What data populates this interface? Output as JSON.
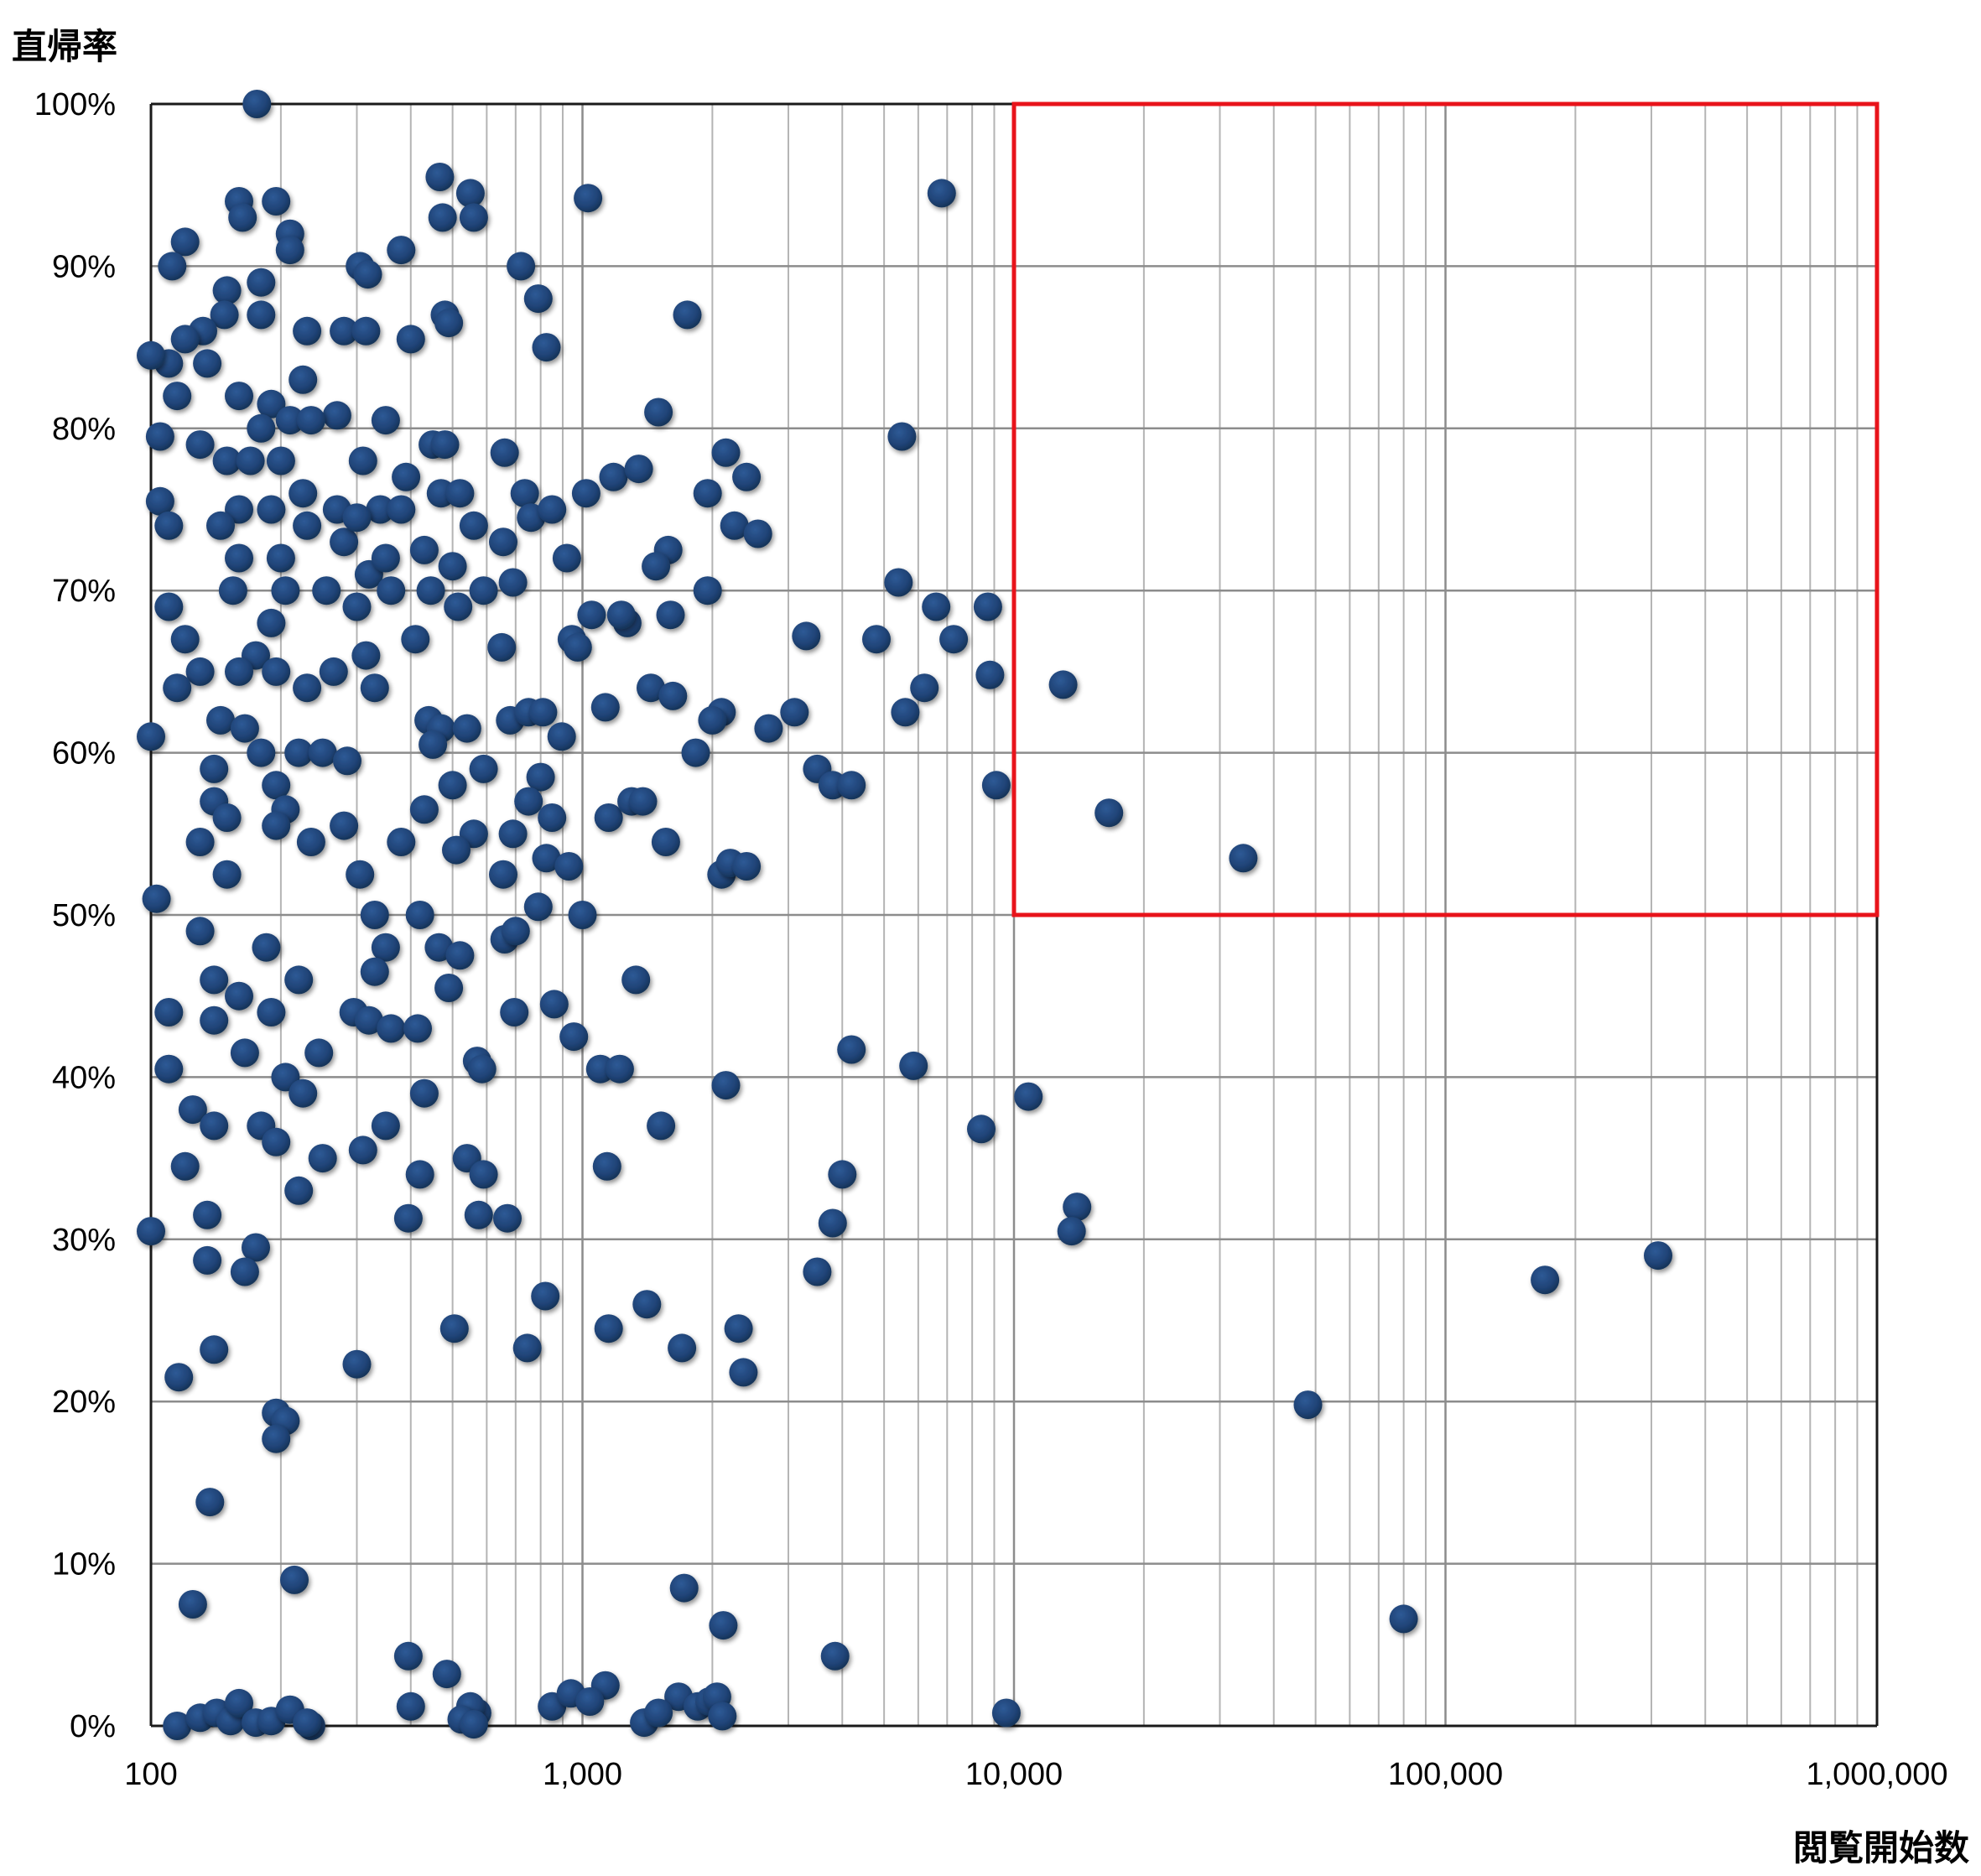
{
  "chart_data": {
    "type": "scatter",
    "title": "",
    "ylabel": "直帰率",
    "xlabel": "閲覧開始数",
    "xscale": "log",
    "xlim": [
      100,
      1000000
    ],
    "ylim": [
      0,
      100
    ],
    "grid": true,
    "legend": "none",
    "xticks": [
      100,
      1000,
      10000,
      100000,
      1000000
    ],
    "xtick_labels": [
      "100",
      "1,000",
      "10,000",
      "100,000",
      "1,000,000"
    ],
    "yticks": [
      0,
      10,
      20,
      30,
      40,
      50,
      60,
      70,
      80,
      90,
      100
    ],
    "ytick_labels": [
      "0%",
      "10%",
      "20%",
      "30%",
      "40%",
      "50%",
      "60%",
      "70%",
      "80%",
      "90%",
      "100%"
    ],
    "highlight_region": {
      "x": [
        10000,
        1000000
      ],
      "y": [
        50,
        100
      ],
      "color": "#e8141b"
    },
    "marker_color": "#1f4275",
    "series": [
      {
        "points": [
          [
            176,
            100
          ],
          [
            467,
            95.5
          ],
          [
            550,
            94.5
          ],
          [
            160,
            94
          ],
          [
            195,
            94
          ],
          [
            1030,
            94.2
          ],
          [
            6800,
            94.5
          ],
          [
            163,
            93
          ],
          [
            474,
            93
          ],
          [
            560,
            93
          ],
          [
            210,
            92
          ],
          [
            120,
            91.5
          ],
          [
            380,
            91
          ],
          [
            210,
            91
          ],
          [
            305,
            90
          ],
          [
            112,
            90
          ],
          [
            720,
            90
          ],
          [
            180,
            89
          ],
          [
            150,
            88.5
          ],
          [
            318,
            89.5
          ],
          [
            790,
            88
          ],
          [
            180,
            87
          ],
          [
            148,
            87
          ],
          [
            480,
            87
          ],
          [
            490,
            86.5
          ],
          [
            1750,
            87
          ],
          [
            132,
            86
          ],
          [
            230,
            86
          ],
          [
            280,
            86
          ],
          [
            315,
            86
          ],
          [
            120,
            85.5
          ],
          [
            400,
            85.5
          ],
          [
            825,
            85
          ],
          [
            110,
            84
          ],
          [
            135,
            84
          ],
          [
            100,
            84.5
          ],
          [
            225,
            83
          ],
          [
            115,
            82
          ],
          [
            160,
            82
          ],
          [
            190,
            81.5
          ],
          [
            1500,
            81
          ],
          [
            210,
            80.5
          ],
          [
            270,
            80.8
          ],
          [
            235,
            80.5
          ],
          [
            350,
            80.5
          ],
          [
            105,
            79.5
          ],
          [
            130,
            79
          ],
          [
            180,
            80
          ],
          [
            5500,
            79.5
          ],
          [
            450,
            79
          ],
          [
            480,
            79
          ],
          [
            150,
            78
          ],
          [
            170,
            78
          ],
          [
            200,
            78
          ],
          [
            310,
            78
          ],
          [
            660,
            78.5
          ],
          [
            2150,
            78.5
          ],
          [
            390,
            77
          ],
          [
            1180,
            77
          ],
          [
            1350,
            77.5
          ],
          [
            2400,
            77
          ],
          [
            735,
            76
          ],
          [
            1020,
            76
          ],
          [
            1950,
            76
          ],
          [
            225,
            76
          ],
          [
            105,
            75.5
          ],
          [
            160,
            75
          ],
          [
            190,
            75
          ],
          [
            270,
            75
          ],
          [
            340,
            75
          ],
          [
            380,
            75
          ],
          [
            470,
            76
          ],
          [
            520,
            76
          ],
          [
            760,
            74.5
          ],
          [
            850,
            75
          ],
          [
            2250,
            74
          ],
          [
            2550,
            73.5
          ],
          [
            110,
            74
          ],
          [
            145,
            74
          ],
          [
            230,
            74
          ],
          [
            280,
            73
          ],
          [
            300,
            74.5
          ],
          [
            560,
            74
          ],
          [
            655,
            73
          ],
          [
            1580,
            72.5
          ],
          [
            500,
            71.5
          ],
          [
            160,
            72
          ],
          [
            200,
            72
          ],
          [
            320,
            71
          ],
          [
            350,
            72
          ],
          [
            430,
            72.5
          ],
          [
            920,
            72
          ],
          [
            1480,
            71.5
          ],
          [
            5400,
            70.5
          ],
          [
            155,
            70
          ],
          [
            205,
            70
          ],
          [
            255,
            70
          ],
          [
            360,
            70
          ],
          [
            445,
            70
          ],
          [
            590,
            70
          ],
          [
            690,
            70.5
          ],
          [
            1950,
            70
          ],
          [
            110,
            69
          ],
          [
            300,
            69
          ],
          [
            515,
            69
          ],
          [
            1050,
            68.5
          ],
          [
            1270,
            68
          ],
          [
            1230,
            68.5
          ],
          [
            1600,
            68.5
          ],
          [
            6600,
            69
          ],
          [
            8700,
            69
          ],
          [
            120,
            67
          ],
          [
            190,
            68
          ],
          [
            945,
            67
          ],
          [
            3300,
            67.2
          ],
          [
            4800,
            67
          ],
          [
            7250,
            67
          ],
          [
            175,
            66
          ],
          [
            315,
            66
          ],
          [
            410,
            67
          ],
          [
            650,
            66.5
          ],
          [
            975,
            66.5
          ],
          [
            130,
            65
          ],
          [
            160,
            65
          ],
          [
            195,
            65
          ],
          [
            265,
            65
          ],
          [
            8800,
            64.8
          ],
          [
            115,
            64
          ],
          [
            230,
            64
          ],
          [
            330,
            64
          ],
          [
            6200,
            64
          ],
          [
            13000,
            64.2
          ],
          [
            1440,
            64
          ],
          [
            1620,
            63.5
          ],
          [
            680,
            62
          ],
          [
            750,
            62.5
          ],
          [
            810,
            62.5
          ],
          [
            440,
            62
          ],
          [
            470,
            61.5
          ],
          [
            145,
            62
          ],
          [
            165,
            61.5
          ],
          [
            1130,
            62.8
          ],
          [
            2100,
            62.5
          ],
          [
            2000,
            62
          ],
          [
            3100,
            62.5
          ],
          [
            2700,
            61.5
          ],
          [
            5600,
            62.5
          ],
          [
            540,
            61.5
          ],
          [
            895,
            61
          ],
          [
            100,
            61
          ],
          [
            450,
            60.5
          ],
          [
            180,
            60
          ],
          [
            220,
            60
          ],
          [
            250,
            60
          ],
          [
            1830,
            60
          ],
          [
            285,
            59.5
          ],
          [
            140,
            59
          ],
          [
            590,
            59
          ],
          [
            3500,
            59
          ],
          [
            195,
            58
          ],
          [
            500,
            58
          ],
          [
            800,
            58.5
          ],
          [
            3800,
            58
          ],
          [
            4200,
            58
          ],
          [
            9100,
            58
          ],
          [
            140,
            57
          ],
          [
            205,
            56.5
          ],
          [
            430,
            56.5
          ],
          [
            750,
            57
          ],
          [
            1150,
            56
          ],
          [
            1300,
            57
          ],
          [
            1380,
            57
          ],
          [
            16600,
            56.3
          ],
          [
            150,
            56
          ],
          [
            195,
            55.5
          ],
          [
            280,
            55.5
          ],
          [
            560,
            55
          ],
          [
            690,
            55
          ],
          [
            850,
            56
          ],
          [
            1560,
            54.5
          ],
          [
            130,
            54.5
          ],
          [
            235,
            54.5
          ],
          [
            380,
            54.5
          ],
          [
            510,
            54
          ],
          [
            655,
            52.5
          ],
          [
            825,
            53.5
          ],
          [
            930,
            53
          ],
          [
            2100,
            52.5
          ],
          [
            2200,
            53.2
          ],
          [
            2400,
            53
          ],
          [
            34000,
            53.5
          ],
          [
            150,
            52.5
          ],
          [
            305,
            52.5
          ],
          [
            790,
            50.5
          ],
          [
            103,
            51
          ],
          [
            1000,
            50
          ],
          [
            330,
            50
          ],
          [
            420,
            50
          ],
          [
            465,
            48
          ],
          [
            520,
            47.5
          ],
          [
            660,
            48.5
          ],
          [
            700,
            49
          ],
          [
            130,
            49
          ],
          [
            185,
            48
          ],
          [
            350,
            48
          ],
          [
            140,
            46
          ],
          [
            220,
            46
          ],
          [
            330,
            46.5
          ],
          [
            490,
            45.5
          ],
          [
            1330,
            46
          ],
          [
            160,
            45
          ],
          [
            110,
            44
          ],
          [
            190,
            44
          ],
          [
            295,
            44
          ],
          [
            320,
            43.5
          ],
          [
            360,
            43
          ],
          [
            695,
            44
          ],
          [
            860,
            44.5
          ],
          [
            140,
            43.5
          ],
          [
            415,
            43
          ],
          [
            955,
            42.5
          ],
          [
            165,
            41.5
          ],
          [
            245,
            41.5
          ],
          [
            570,
            41
          ],
          [
            4200,
            41.7
          ],
          [
            1100,
            40.5
          ],
          [
            1220,
            40.5
          ],
          [
            5850,
            40.7
          ],
          [
            110,
            40.5
          ],
          [
            205,
            40
          ],
          [
            585,
            40.5
          ],
          [
            2150,
            39.5
          ],
          [
            225,
            39
          ],
          [
            430,
            39
          ],
          [
            10800,
            38.8
          ],
          [
            125,
            38
          ],
          [
            140,
            37
          ],
          [
            180,
            37
          ],
          [
            350,
            37
          ],
          [
            1520,
            37
          ],
          [
            8400,
            36.8
          ],
          [
            195,
            36
          ],
          [
            310,
            35.5
          ],
          [
            250,
            35
          ],
          [
            540,
            35
          ],
          [
            120,
            34.5
          ],
          [
            1140,
            34.5
          ],
          [
            420,
            34
          ],
          [
            590,
            34
          ],
          [
            4000,
            34
          ],
          [
            220,
            33
          ],
          [
            14000,
            32
          ],
          [
            13600,
            30.5
          ],
          [
            135,
            31.5
          ],
          [
            395,
            31.3
          ],
          [
            575,
            31.5
          ],
          [
            670,
            31.3
          ],
          [
            3800,
            31
          ],
          [
            100,
            30.5
          ],
          [
            175,
            29.5
          ],
          [
            311000,
            29
          ],
          [
            135,
            28.7
          ],
          [
            165,
            28
          ],
          [
            3500,
            28
          ],
          [
            170000,
            27.5
          ],
          [
            820,
            26.5
          ],
          [
            1410,
            26
          ],
          [
            505,
            24.5
          ],
          [
            1150,
            24.5
          ],
          [
            2300,
            24.5
          ],
          [
            1700,
            23.3
          ],
          [
            140,
            23.2
          ],
          [
            745,
            23.3
          ],
          [
            300,
            22.3
          ],
          [
            2360,
            21.8
          ],
          [
            116,
            21.5
          ],
          [
            48000,
            19.8
          ],
          [
            195,
            19.3
          ],
          [
            205,
            18.8
          ],
          [
            195,
            17.7
          ],
          [
            137,
            13.8
          ],
          [
            215,
            9
          ],
          [
            1720,
            8.5
          ],
          [
            125,
            7.5
          ],
          [
            80000,
            6.6
          ],
          [
            2120,
            6.2
          ],
          [
            395,
            4.3
          ],
          [
            3850,
            4.3
          ],
          [
            485,
            3.2
          ],
          [
            1130,
            2.5
          ],
          [
            400,
            1.2
          ],
          [
            850,
            1.2
          ],
          [
            940,
            2
          ],
          [
            1040,
            1.5
          ],
          [
            1670,
            1.8
          ],
          [
            1850,
            1.2
          ],
          [
            1970,
            1.5
          ],
          [
            2050,
            1.8
          ],
          [
            570,
            0.8
          ],
          [
            550,
            1.2
          ],
          [
            9600,
            0.8
          ],
          [
            115,
            0
          ],
          [
            130,
            0.5
          ],
          [
            142,
            0.8
          ],
          [
            153,
            0.3
          ],
          [
            160,
            1.4
          ],
          [
            175,
            0.2
          ],
          [
            190,
            0.3
          ],
          [
            210,
            1
          ],
          [
            235,
            0
          ],
          [
            525,
            0.4
          ],
          [
            560,
            0.1
          ],
          [
            1390,
            0.2
          ],
          [
            1500,
            0.8
          ],
          [
            2110,
            0.6
          ],
          [
            230,
            0.2
          ]
        ]
      }
    ]
  }
}
